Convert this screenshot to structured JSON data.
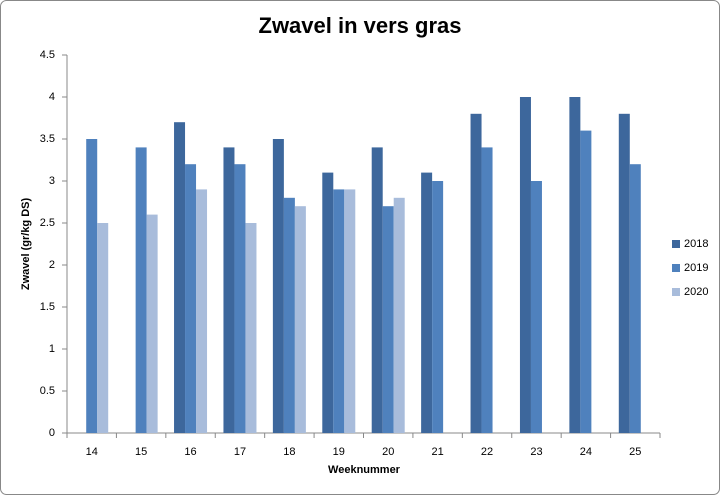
{
  "chart_data": {
    "type": "bar",
    "title": "Zwavel in vers gras",
    "x_label": "Weeknummer",
    "y_label": "Zwavel (gr/kg DS)",
    "categories": [
      "14",
      "15",
      "16",
      "17",
      "18",
      "19",
      "20",
      "21",
      "22",
      "23",
      "24",
      "25"
    ],
    "series": [
      {
        "name": "2018",
        "color": "#3d679c",
        "values": [
          null,
          null,
          3.7,
          3.4,
          3.5,
          3.1,
          3.4,
          3.1,
          3.8,
          4.0,
          4.0,
          3.8
        ]
      },
      {
        "name": "2019",
        "color": "#4f81bd",
        "values": [
          3.5,
          3.4,
          3.2,
          3.2,
          2.8,
          2.9,
          2.7,
          3.0,
          3.4,
          3.0,
          3.6,
          3.2
        ]
      },
      {
        "name": "2020",
        "color": "#a8bcdb",
        "values": [
          2.5,
          2.6,
          2.9,
          2.5,
          2.7,
          2.9,
          2.8,
          null,
          null,
          null,
          null,
          null
        ]
      }
    ],
    "ylim": [
      0,
      4.5
    ],
    "yticks": [
      0,
      0.5,
      1,
      1.5,
      2,
      2.5,
      3,
      3.5,
      4,
      4.5
    ],
    "grid": false,
    "legend": "right"
  }
}
